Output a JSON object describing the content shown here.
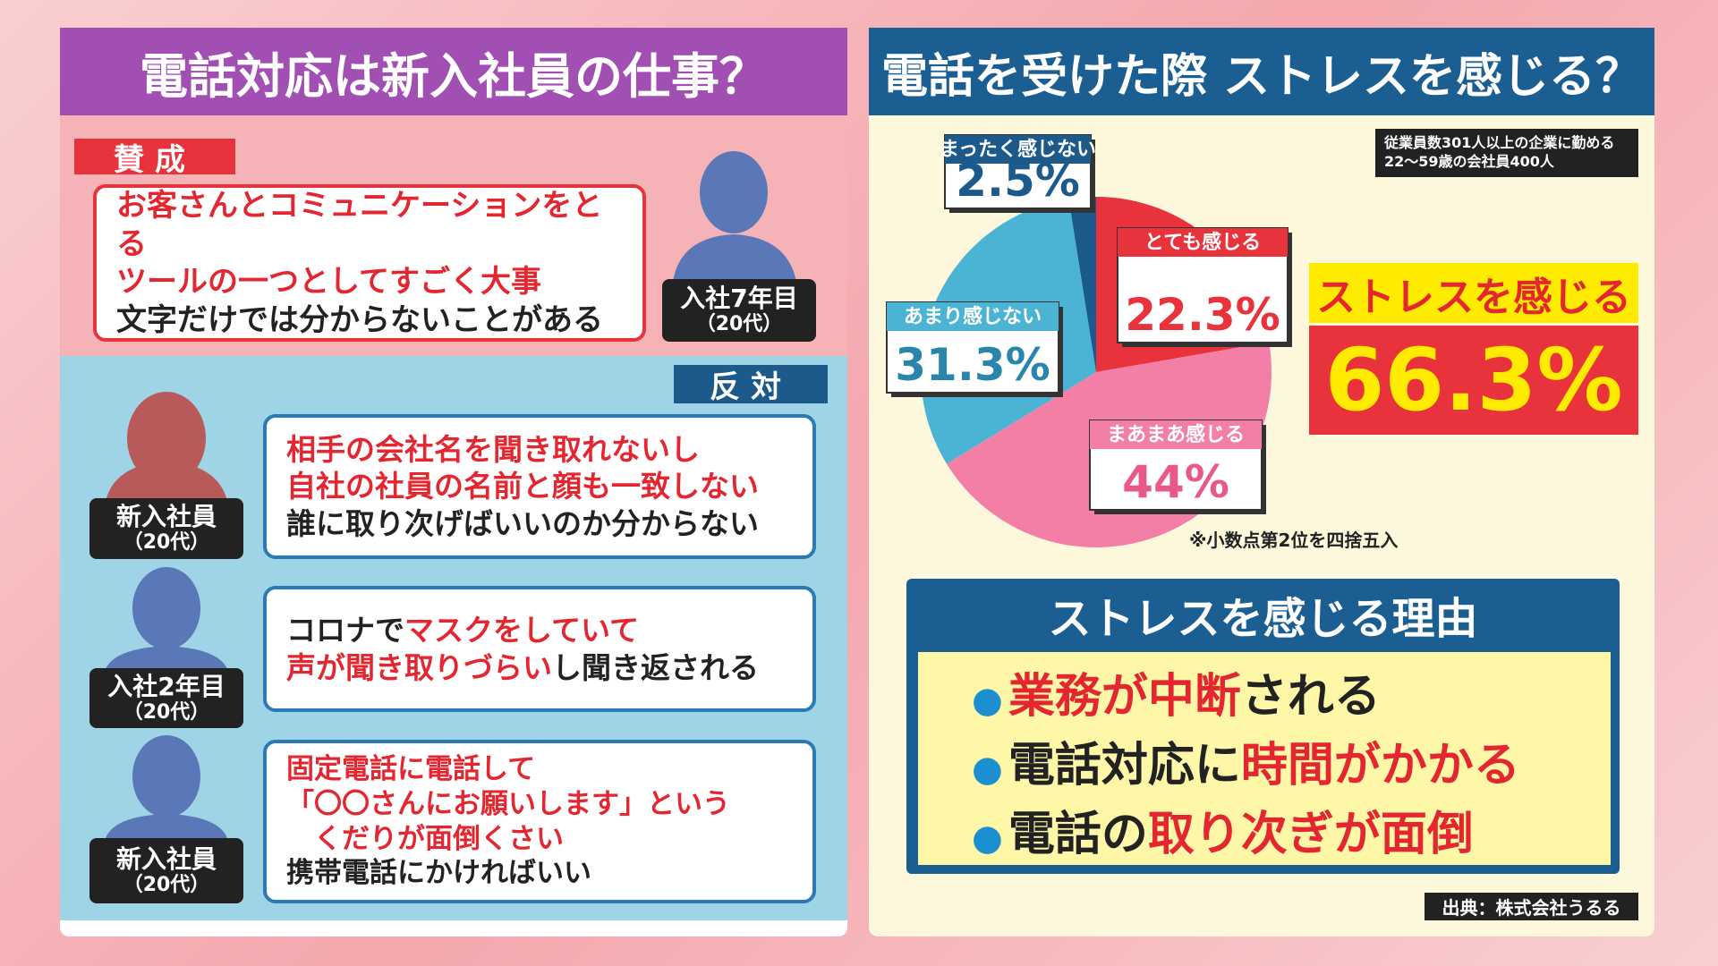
{
  "left": {
    "title": "電話対応は新入社員の仕事？",
    "pro": {
      "label": "賛成",
      "comments": [
        {
          "speaker": [
            "入社7年目",
            "（20代）"
          ],
          "lines": [
            [
              {
                "text": "お客さんとコミュニケーションをとる",
                "color": "#e3262f"
              }
            ],
            [
              {
                "text": "ツールの一つとしてすごく大事",
                "color": "#e3262f"
              }
            ],
            [
              {
                "text": "文字だけでは分からないことがある",
                "color": "#222222"
              }
            ]
          ]
        }
      ]
    },
    "con": {
      "label": "反対",
      "comments": [
        {
          "speaker": [
            "新入社員",
            "（20代）"
          ],
          "lines": [
            [
              {
                "text": "相手の会社名を聞き取れないし",
                "color": "#e3262f"
              }
            ],
            [
              {
                "text": "自社の社員の名前と顔も一致しない",
                "color": "#e3262f"
              }
            ],
            [
              {
                "text": "誰に取り次げばいいのか分からない",
                "color": "#222222"
              }
            ]
          ]
        },
        {
          "speaker": [
            "入社2年目",
            "（20代）"
          ],
          "lines": [
            [
              {
                "text": "コロナで",
                "color": "#222222"
              },
              {
                "text": "マスクをしていて",
                "color": "#e3262f"
              }
            ],
            [
              {
                "text": "声が聞き取りづらい",
                "color": "#e3262f"
              },
              {
                "text": "し聞き返される",
                "color": "#222222"
              }
            ]
          ]
        },
        {
          "speaker": [
            "新入社員",
            "（20代）"
          ],
          "lines": [
            [
              {
                "text": "固定電話に電話して",
                "color": "#e3262f"
              }
            ],
            [
              {
                "text": "「〇〇さんにお願いします」という",
                "color": "#e3262f"
              }
            ],
            [
              {
                "text": "　くだりが面倒くさい",
                "color": "#e3262f"
              }
            ],
            [
              {
                "text": "携帯電話にかければいい",
                "color": "#222222"
              }
            ]
          ]
        }
      ]
    }
  },
  "right": {
    "title": "電話を受けた際 ストレスを感じる？",
    "survey_note": [
      "従業員数301人以上の企業に勤める",
      "22～59歳の会社員400人"
    ],
    "summary": {
      "label": "ストレスを感じる",
      "value": "66.3%"
    },
    "footnote": "※小数点第2位を四捨五入",
    "reasons": {
      "title": "ストレスを感じる理由",
      "items": [
        [
          {
            "text": "業務が中断",
            "color": "#e3262f"
          },
          {
            "text": "される",
            "color": "#222222"
          }
        ],
        [
          {
            "text": "電話対応に",
            "color": "#222222"
          },
          {
            "text": "時間がかかる",
            "color": "#e3262f"
          }
        ],
        [
          {
            "text": "電話の",
            "color": "#222222"
          },
          {
            "text": "取り次ぎが面倒",
            "color": "#e3262f"
          }
        ]
      ]
    },
    "source": "出典：株式会社うるる"
  },
  "chart_data": {
    "type": "pie",
    "categories": [
      "とても感じる",
      "まあまあ感じる",
      "あまり感じない",
      "まったく感じない"
    ],
    "values": [
      22.3,
      44,
      31.3,
      2.5
    ],
    "value_labels": [
      "22.3%",
      "44%",
      "31.3%",
      "2.5%"
    ],
    "colors": [
      "#e8323c",
      "#f47fa6",
      "#4bb3d4",
      "#1c5a8c"
    ]
  }
}
